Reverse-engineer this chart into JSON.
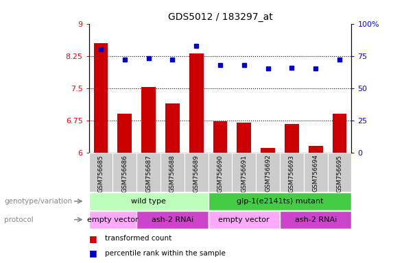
{
  "title": "GDS5012 / 183297_at",
  "samples": [
    "GSM756685",
    "GSM756686",
    "GSM756687",
    "GSM756688",
    "GSM756689",
    "GSM756690",
    "GSM756691",
    "GSM756692",
    "GSM756693",
    "GSM756694",
    "GSM756695"
  ],
  "red_values": [
    8.55,
    6.9,
    7.52,
    7.15,
    8.3,
    6.73,
    6.7,
    6.1,
    6.67,
    6.15,
    6.9
  ],
  "blue_values": [
    80,
    72,
    73,
    72,
    83,
    68,
    68,
    65,
    66,
    65,
    72
  ],
  "ylim_left": [
    6,
    9
  ],
  "ylim_right": [
    0,
    100
  ],
  "yticks_left": [
    6,
    6.75,
    7.5,
    8.25,
    9
  ],
  "yticks_right": [
    0,
    25,
    50,
    75,
    100
  ],
  "ytick_labels_left": [
    "6",
    "6.75",
    "7.5",
    "8.25",
    "9"
  ],
  "ytick_labels_right": [
    "0",
    "25",
    "50",
    "75",
    "100%"
  ],
  "bar_color": "#cc0000",
  "dot_color": "#0000cc",
  "genotype_groups": [
    {
      "label": "wild type",
      "start": 0,
      "end": 4,
      "color": "#bbffbb"
    },
    {
      "label": "glp-1(e2141ts) mutant",
      "start": 5,
      "end": 10,
      "color": "#44cc44"
    }
  ],
  "protocol_groups": [
    {
      "label": "empty vector",
      "start": 0,
      "end": 1,
      "color": "#ffaaff"
    },
    {
      "label": "ash-2 RNAi",
      "start": 2,
      "end": 4,
      "color": "#cc44cc"
    },
    {
      "label": "empty vector",
      "start": 5,
      "end": 7,
      "color": "#ffaaff"
    },
    {
      "label": "ash-2 RNAi",
      "start": 8,
      "end": 10,
      "color": "#cc44cc"
    }
  ],
  "xticklabel_bg": "#cccccc",
  "bar_width": 0.6,
  "figsize": [
    5.89,
    3.84
  ],
  "dpi": 100
}
